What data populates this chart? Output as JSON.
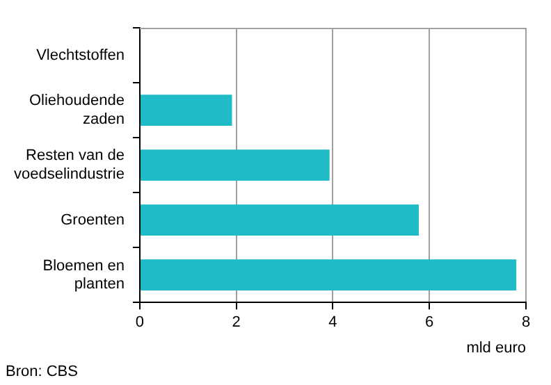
{
  "chart_data": {
    "type": "bar",
    "orientation": "horizontal",
    "categories": [
      "Vlechtstoffen",
      "Oliehoudende zaden",
      "Resten van de voedselindustrie",
      "Groenten",
      "Bloemen en planten"
    ],
    "values": [
      0,
      1.91,
      3.93,
      5.78,
      7.8
    ],
    "color": "#1fbbc6",
    "xlabel": "mld euro",
    "xlim": [
      0,
      8
    ],
    "xticks": [
      0,
      2,
      4,
      6,
      8
    ],
    "grid": "x",
    "annotations": [
      "Bron: CBS"
    ]
  }
}
